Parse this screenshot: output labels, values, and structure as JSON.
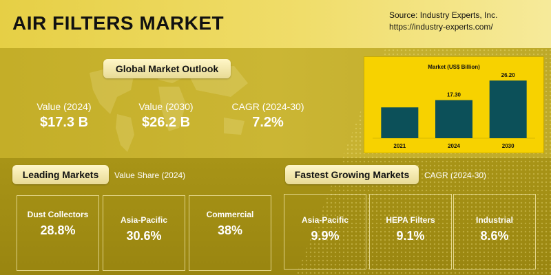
{
  "header": {
    "title": "AIR FILTERS MARKET",
    "source_line1": "Source: Industry Experts, Inc.",
    "source_line2": "https://industry-experts.com/"
  },
  "outlook": {
    "heading": "Global Market Outlook",
    "metrics": [
      {
        "label": "Value (2024)",
        "value": "$17.3 B"
      },
      {
        "label": "Value (2030)",
        "value": "$26.2 B"
      },
      {
        "label": "CAGR (2024-30)",
        "value": "7.2%"
      }
    ]
  },
  "chart_data": {
    "type": "bar",
    "title": "Market (US$ Billion)",
    "categories": [
      "2021",
      "2024",
      "2030"
    ],
    "values": [
      null,
      17.3,
      26.2
    ],
    "data_labels": [
      "",
      "17.30",
      "26.20"
    ],
    "estimated_values": [
      14.0,
      17.3,
      26.2
    ],
    "ylim": [
      0,
      30
    ],
    "colors": {
      "bar": "#0c5059",
      "background": "#f7d200"
    }
  },
  "leading": {
    "heading": "Leading Markets",
    "subtitle": "Value Share (2024)",
    "cards": [
      {
        "label": "Dust Collectors",
        "value": "28.8%"
      },
      {
        "label": "Asia-Pacific",
        "value": "30.6%"
      },
      {
        "label": "Commercial",
        "value": "38%"
      }
    ]
  },
  "fastest": {
    "heading": "Fastest Growing Markets",
    "subtitle": "CAGR (2024-30)",
    "cards": [
      {
        "label": "Asia-Pacific",
        "value": "9.9%"
      },
      {
        "label": "HEPA Filters",
        "value": "9.1%"
      },
      {
        "label": "Industrial",
        "value": "8.6%"
      }
    ]
  }
}
